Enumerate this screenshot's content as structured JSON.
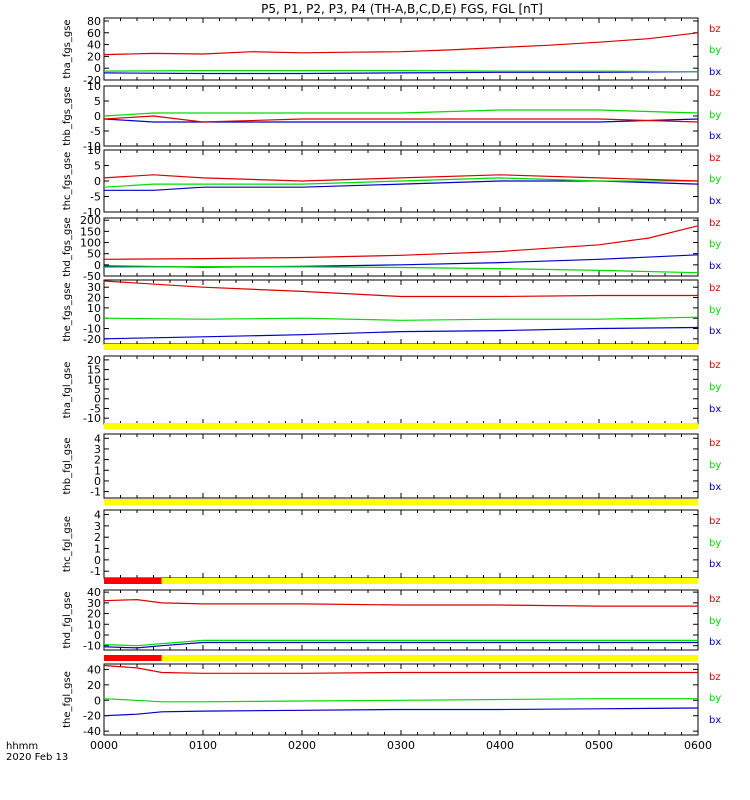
{
  "title": "P5, P1, P2, P3, P4 (TH-A,B,C,D,E) FGS, FGL [nT]",
  "footer": {
    "axis_label": "hhmm",
    "date": "2020 Feb 13"
  },
  "colors": {
    "bz": "#dd0000",
    "by": "#00dd00",
    "bx": "#0000cc",
    "bar_yellow": "#ffff00",
    "bar_red": "#ff0000"
  },
  "chart_data": [
    {
      "type": "line",
      "ylabel": "tha_fgs_gse",
      "ylim": [
        -20,
        85
      ],
      "yticks": [
        80,
        60,
        40,
        20,
        0,
        -20
      ],
      "yticklabels": [
        "80",
        "60",
        "40",
        "20",
        "0",
        "-20"
      ],
      "legend": [
        "bz",
        "by",
        "bx"
      ],
      "xlim": [
        0,
        360
      ],
      "xticks": [
        0,
        60,
        120,
        180,
        240,
        300,
        360
      ],
      "xticklabels": [
        "0000",
        "0100",
        "0200",
        "0300",
        "0400",
        "0500",
        "0600"
      ],
      "series": [
        {
          "name": "bz",
          "x": [
            0,
            30,
            60,
            90,
            120,
            150,
            180,
            210,
            240,
            270,
            300,
            330,
            360
          ],
          "values": [
            23,
            25,
            24,
            28,
            26,
            27,
            28,
            31,
            35,
            39,
            44,
            50,
            60
          ]
        },
        {
          "name": "by",
          "x": [
            0,
            60,
            120,
            180,
            240,
            300,
            360
          ],
          "values": [
            -5,
            -4,
            -4,
            -4,
            -5,
            -5,
            -6
          ]
        },
        {
          "name": "bx",
          "x": [
            0,
            60,
            120,
            180,
            240,
            300,
            360
          ],
          "values": [
            -8,
            -9,
            -9,
            -8,
            -7,
            -7,
            -6
          ]
        }
      ]
    },
    {
      "type": "line",
      "ylabel": "thb_fgs_gse",
      "ylim": [
        -10,
        10
      ],
      "yticks": [
        10,
        5,
        0,
        -5,
        -10
      ],
      "yticklabels": [
        "10",
        "5",
        "0",
        "-5",
        "-10"
      ],
      "legend": [
        "bz",
        "by",
        "bx"
      ],
      "xlim": [
        0,
        360
      ],
      "series": [
        {
          "name": "bz",
          "x": [
            0,
            30,
            60,
            120,
            180,
            240,
            300,
            360
          ],
          "values": [
            -1,
            0,
            -2,
            -1,
            -1,
            -1,
            -1,
            -2
          ]
        },
        {
          "name": "by",
          "x": [
            0,
            30,
            60,
            120,
            180,
            240,
            300,
            360
          ],
          "values": [
            0,
            1,
            1,
            1,
            1,
            2,
            2,
            1
          ]
        },
        {
          "name": "bx",
          "x": [
            0,
            30,
            60,
            120,
            180,
            240,
            300,
            360
          ],
          "values": [
            -1,
            -2,
            -2,
            -2,
            -2,
            -2,
            -2,
            -1
          ]
        }
      ]
    },
    {
      "type": "line",
      "ylabel": "thc_fgs_gse",
      "ylim": [
        -10,
        10
      ],
      "yticks": [
        10,
        5,
        0,
        -5,
        -10
      ],
      "yticklabels": [
        "10",
        "5",
        "0",
        "-5",
        "-10"
      ],
      "legend": [
        "bz",
        "by",
        "bx"
      ],
      "xlim": [
        0,
        360
      ],
      "series": [
        {
          "name": "bz",
          "x": [
            0,
            30,
            60,
            120,
            180,
            240,
            300,
            360
          ],
          "values": [
            1,
            2,
            1,
            0,
            1,
            2,
            1,
            0
          ]
        },
        {
          "name": "by",
          "x": [
            0,
            30,
            60,
            120,
            180,
            240,
            300,
            360
          ],
          "values": [
            -2,
            -1,
            -1,
            -1,
            0,
            1,
            0,
            0
          ]
        },
        {
          "name": "bx",
          "x": [
            0,
            30,
            60,
            120,
            180,
            240,
            300,
            360
          ],
          "values": [
            -3,
            -3,
            -2,
            -2,
            -1,
            0,
            0,
            -1
          ]
        }
      ]
    },
    {
      "type": "line",
      "ylabel": "thd_fgs_gse",
      "ylim": [
        -50,
        210
      ],
      "yticks": [
        200,
        150,
        100,
        50,
        0,
        -50
      ],
      "yticklabels": [
        "200",
        "150",
        "100",
        "50",
        "0",
        "-50"
      ],
      "legend": [
        "bz",
        "by",
        "bx"
      ],
      "xlim": [
        0,
        360
      ],
      "series": [
        {
          "name": "bz",
          "x": [
            0,
            60,
            120,
            180,
            240,
            300,
            330,
            360
          ],
          "values": [
            25,
            28,
            33,
            43,
            60,
            90,
            120,
            175
          ]
        },
        {
          "name": "by",
          "x": [
            0,
            60,
            120,
            180,
            240,
            300,
            360
          ],
          "values": [
            -10,
            -8,
            -9,
            -12,
            -17,
            -25,
            -35
          ]
        },
        {
          "name": "bx",
          "x": [
            0,
            60,
            120,
            180,
            240,
            300,
            360
          ],
          "values": [
            -5,
            -10,
            -7,
            0,
            10,
            25,
            45
          ]
        }
      ]
    },
    {
      "type": "line",
      "ylabel": "the_fgs_gse",
      "ylim": [
        -25,
        37
      ],
      "yticks": [
        30,
        20,
        10,
        0,
        -10,
        -20
      ],
      "yticklabels": [
        "30",
        "20",
        "10",
        "0",
        "-10",
        "-20"
      ],
      "legend": [
        "bz",
        "by",
        "bx"
      ],
      "xlim": [
        0,
        360
      ],
      "series": [
        {
          "name": "bz",
          "x": [
            0,
            60,
            120,
            180,
            240,
            300,
            360
          ],
          "values": [
            36,
            30,
            26,
            21,
            21,
            22,
            22
          ]
        },
        {
          "name": "by",
          "x": [
            0,
            60,
            120,
            180,
            240,
            300,
            360
          ],
          "values": [
            0,
            -1,
            0,
            -2,
            -1,
            -1,
            1
          ]
        },
        {
          "name": "bx",
          "x": [
            0,
            60,
            120,
            180,
            240,
            300,
            360
          ],
          "values": [
            -20,
            -18,
            -16,
            -13,
            -12,
            -10,
            -9
          ]
        }
      ]
    },
    {
      "type": "line",
      "ylabel": "tha_fgl_gse",
      "ylim": [
        -13,
        22
      ],
      "yticks": [
        20,
        15,
        10,
        5,
        0,
        -5,
        -10
      ],
      "yticklabels": [
        "20",
        "15",
        "10",
        "5",
        "0",
        "-5",
        "-10"
      ],
      "legend": [
        "bz",
        "by",
        "bx"
      ],
      "xlim": [
        0,
        360
      ],
      "series": []
    },
    {
      "type": "line",
      "ylabel": "thb_fgl_gse",
      "ylim": [
        -1.6,
        4.4
      ],
      "yticks": [
        4,
        3,
        2,
        1,
        0,
        -1
      ],
      "yticklabels": [
        "4",
        "3",
        "2",
        "1",
        "0",
        "-1"
      ],
      "legend": [
        "bz",
        "by",
        "bx"
      ],
      "xlim": [
        0,
        360
      ],
      "series": []
    },
    {
      "type": "line",
      "ylabel": "thc_fgl_gse",
      "ylim": [
        -1.6,
        4.4
      ],
      "yticks": [
        4,
        3,
        2,
        1,
        0,
        -1
      ],
      "yticklabels": [
        "4",
        "3",
        "2",
        "1",
        "0",
        "-1"
      ],
      "legend": [
        "bz",
        "by",
        "bx"
      ],
      "xlim": [
        0,
        360
      ],
      "series": []
    },
    {
      "type": "line",
      "ylabel": "thd_fgl_gse",
      "ylim": [
        -14,
        42
      ],
      "yticks": [
        40,
        30,
        20,
        10,
        0,
        -10
      ],
      "yticklabels": [
        "40",
        "30",
        "20",
        "10",
        "0",
        "-10"
      ],
      "legend": [
        "bz",
        "by",
        "bx"
      ],
      "xlim": [
        0,
        360
      ],
      "series": [
        {
          "name": "bz",
          "x": [
            0,
            20,
            35,
            60,
            120,
            180,
            240,
            300,
            360
          ],
          "values": [
            32,
            33,
            30,
            29,
            29,
            28,
            28,
            27,
            27
          ]
        },
        {
          "name": "by",
          "x": [
            0,
            20,
            35,
            60,
            120,
            180,
            240,
            300,
            360
          ],
          "values": [
            -9,
            -10,
            -8,
            -5,
            -5,
            -5,
            -5,
            -5,
            -5
          ]
        },
        {
          "name": "bx",
          "x": [
            0,
            20,
            35,
            60,
            120,
            180,
            240,
            300,
            360
          ],
          "values": [
            -11,
            -12,
            -10,
            -7,
            -7,
            -7,
            -7,
            -7,
            -7
          ]
        }
      ]
    },
    {
      "type": "line",
      "ylabel": "the_fgl_gse",
      "ylim": [
        -45,
        47
      ],
      "yticks": [
        40,
        20,
        0,
        -20,
        -40
      ],
      "yticklabels": [
        "40",
        "20",
        "0",
        "-20",
        "-40"
      ],
      "legend": [
        "bz",
        "by",
        "bx"
      ],
      "xlim": [
        0,
        360
      ],
      "xticks": [
        0,
        60,
        120,
        180,
        240,
        300,
        360
      ],
      "xticklabels": [
        "0000",
        "0100",
        "0200",
        "0300",
        "0400",
        "0500",
        "0600"
      ],
      "series": [
        {
          "name": "bz",
          "x": [
            0,
            20,
            35,
            60,
            120,
            180,
            240,
            300,
            360
          ],
          "values": [
            45,
            42,
            36,
            35,
            35,
            36,
            36,
            36,
            36
          ]
        },
        {
          "name": "by",
          "x": [
            0,
            20,
            35,
            60,
            120,
            180,
            240,
            300,
            360
          ],
          "values": [
            2,
            0,
            -2,
            -2,
            -1,
            0,
            1,
            2,
            2
          ]
        },
        {
          "name": "bx",
          "x": [
            0,
            20,
            35,
            60,
            120,
            180,
            240,
            300,
            360
          ],
          "values": [
            -20,
            -18,
            -15,
            -14,
            -13,
            -12,
            -12,
            -11,
            -10
          ]
        }
      ]
    }
  ],
  "bars": [
    {
      "name": "bar-the-fgs",
      "segments": [
        {
          "x": [
            0,
            360
          ],
          "color": "yellow"
        }
      ]
    },
    {
      "name": "bar-tha-fgl",
      "segments": [
        {
          "x": [
            0,
            360
          ],
          "color": "yellow"
        }
      ]
    },
    {
      "name": "bar-thb-fgl",
      "segments": [
        {
          "x": [
            0,
            360
          ],
          "color": "yellow"
        }
      ]
    },
    {
      "name": "bar-thc-fgl",
      "segments": [
        {
          "x": [
            0,
            35
          ],
          "color": "red"
        },
        {
          "x": [
            35,
            360
          ],
          "color": "yellow"
        }
      ]
    },
    {
      "name": "bar-thd-fgl",
      "segments": [
        {
          "x": [
            0,
            35
          ],
          "color": "red"
        },
        {
          "x": [
            35,
            360
          ],
          "color": "yellow"
        }
      ]
    }
  ]
}
